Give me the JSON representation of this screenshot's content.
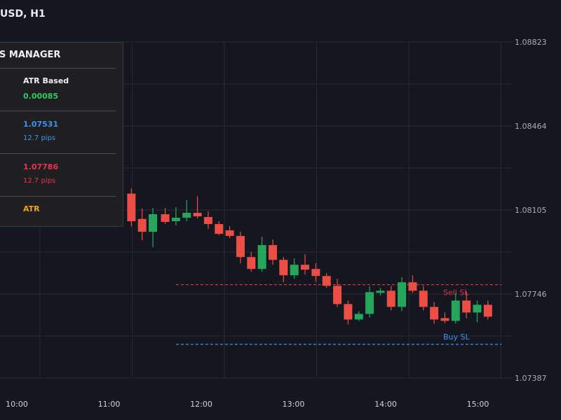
{
  "title": "USD, H1",
  "panel": {
    "title": "S MANAGER",
    "method": {
      "label": "ATR Based",
      "value": "0.00085",
      "value_color": "#2ec95c"
    },
    "buy_sl": {
      "price": "1.07531",
      "pips": "12.7 pips",
      "color": "#3b93f0"
    },
    "sell_sl": {
      "price": "1.07786",
      "pips": "12.7 pips",
      "color": "#e8334f"
    },
    "mode": {
      "label": "ATR",
      "color": "#f0a21a"
    }
  },
  "colors": {
    "up": "#26a65b",
    "down": "#ec4d45",
    "grid": "#262a35",
    "buy_line": "#3b93f0",
    "sell_line": "#d6344a"
  },
  "chart_data": {
    "type": "candlestick",
    "title": "USD, H1",
    "y_ticks": [
      "1.08823",
      "1.08464",
      "1.08105",
      "1.07746",
      "1.07387"
    ],
    "ylim": [
      1.07387,
      1.08823
    ],
    "x_ticks": [
      "10:00",
      "11:00",
      "12:00",
      "13:00",
      "14:00",
      "15:00"
    ],
    "grid": true,
    "ohlc": [
      {
        "t": "11:20",
        "o": 1.08175,
        "h": 1.08197,
        "l": 1.08035,
        "c": 1.08057
      },
      {
        "t": "11:27",
        "o": 1.08067,
        "h": 1.08111,
        "l": 1.07976,
        "c": 1.08012
      },
      {
        "t": "11:34",
        "o": 1.08012,
        "h": 1.08114,
        "l": 1.07946,
        "c": 1.08087
      },
      {
        "t": "11:42",
        "o": 1.08087,
        "h": 1.08114,
        "l": 1.08045,
        "c": 1.08054
      },
      {
        "t": "11:49",
        "o": 1.08057,
        "h": 1.08117,
        "l": 1.08039,
        "c": 1.08072
      },
      {
        "t": "11:56",
        "o": 1.08072,
        "h": 1.08147,
        "l": 1.08057,
        "c": 1.08093
      },
      {
        "t": "12:03",
        "o": 1.08093,
        "h": 1.08164,
        "l": 1.08069,
        "c": 1.08078
      },
      {
        "t": "12:10",
        "o": 1.08075,
        "h": 1.08099,
        "l": 1.08024,
        "c": 1.08045
      },
      {
        "t": "12:17",
        "o": 1.08045,
        "h": 1.08057,
        "l": 1.07997,
        "c": 1.08003
      },
      {
        "t": "12:24",
        "o": 1.08018,
        "h": 1.08036,
        "l": 1.07985,
        "c": 1.07994
      },
      {
        "t": "12:31",
        "o": 1.07994,
        "h": 1.08012,
        "l": 1.07877,
        "c": 1.07904
      },
      {
        "t": "12:38",
        "o": 1.07904,
        "h": 1.07925,
        "l": 1.07841,
        "c": 1.07853
      },
      {
        "t": "12:45",
        "o": 1.07853,
        "h": 1.07991,
        "l": 1.07841,
        "c": 1.07955
      },
      {
        "t": "12:52",
        "o": 1.07955,
        "h": 1.07979,
        "l": 1.07871,
        "c": 1.07892
      },
      {
        "t": "12:59",
        "o": 1.07892,
        "h": 1.07904,
        "l": 1.07796,
        "c": 1.07826
      },
      {
        "t": "13:06",
        "o": 1.07826,
        "h": 1.07898,
        "l": 1.07811,
        "c": 1.07871
      },
      {
        "t": "13:13",
        "o": 1.07871,
        "h": 1.07916,
        "l": 1.07829,
        "c": 1.0785
      },
      {
        "t": "13:20",
        "o": 1.07853,
        "h": 1.07877,
        "l": 1.07799,
        "c": 1.07823
      },
      {
        "t": "13:27",
        "o": 1.07823,
        "h": 1.07835,
        "l": 1.07772,
        "c": 1.07781
      },
      {
        "t": "13:34",
        "o": 1.07781,
        "h": 1.07811,
        "l": 1.07691,
        "c": 1.07703
      },
      {
        "t": "13:41",
        "o": 1.07703,
        "h": 1.07718,
        "l": 1.07616,
        "c": 1.07637
      },
      {
        "t": "13:48",
        "o": 1.07637,
        "h": 1.07673,
        "l": 1.07631,
        "c": 1.07661
      },
      {
        "t": "13:55",
        "o": 1.07661,
        "h": 1.07778,
        "l": 1.07646,
        "c": 1.07754
      },
      {
        "t": "14:02",
        "o": 1.07751,
        "h": 1.07772,
        "l": 1.07739,
        "c": 1.0776
      },
      {
        "t": "14:09",
        "o": 1.0776,
        "h": 1.07781,
        "l": 1.07676,
        "c": 1.07691
      },
      {
        "t": "14:16",
        "o": 1.07691,
        "h": 1.07817,
        "l": 1.07673,
        "c": 1.07796
      },
      {
        "t": "14:23",
        "o": 1.07796,
        "h": 1.07826,
        "l": 1.07751,
        "c": 1.0776
      },
      {
        "t": "14:30",
        "o": 1.0776,
        "h": 1.07781,
        "l": 1.07676,
        "c": 1.07691
      },
      {
        "t": "14:37",
        "o": 1.07691,
        "h": 1.07712,
        "l": 1.07619,
        "c": 1.07637
      },
      {
        "t": "14:44",
        "o": 1.07643,
        "h": 1.07667,
        "l": 1.07622,
        "c": 1.07631
      },
      {
        "t": "14:51",
        "o": 1.07631,
        "h": 1.07751,
        "l": 1.07619,
        "c": 1.07718
      },
      {
        "t": "14:58",
        "o": 1.07718,
        "h": 1.07757,
        "l": 1.07643,
        "c": 1.07667
      },
      {
        "t": "15:05",
        "o": 1.07667,
        "h": 1.07718,
        "l": 1.07625,
        "c": 1.077
      },
      {
        "t": "15:12",
        "o": 1.077,
        "h": 1.07718,
        "l": 1.07637,
        "c": 1.07649
      }
    ],
    "annotations": [
      {
        "text": "Sell SL",
        "price": 1.07786,
        "from": "11:49",
        "style": "dashed",
        "color": "#d6344a"
      },
      {
        "text": "Buy SL",
        "price": 1.07531,
        "from": "11:49",
        "style": "dashed",
        "color": "#3b93f0"
      }
    ]
  }
}
